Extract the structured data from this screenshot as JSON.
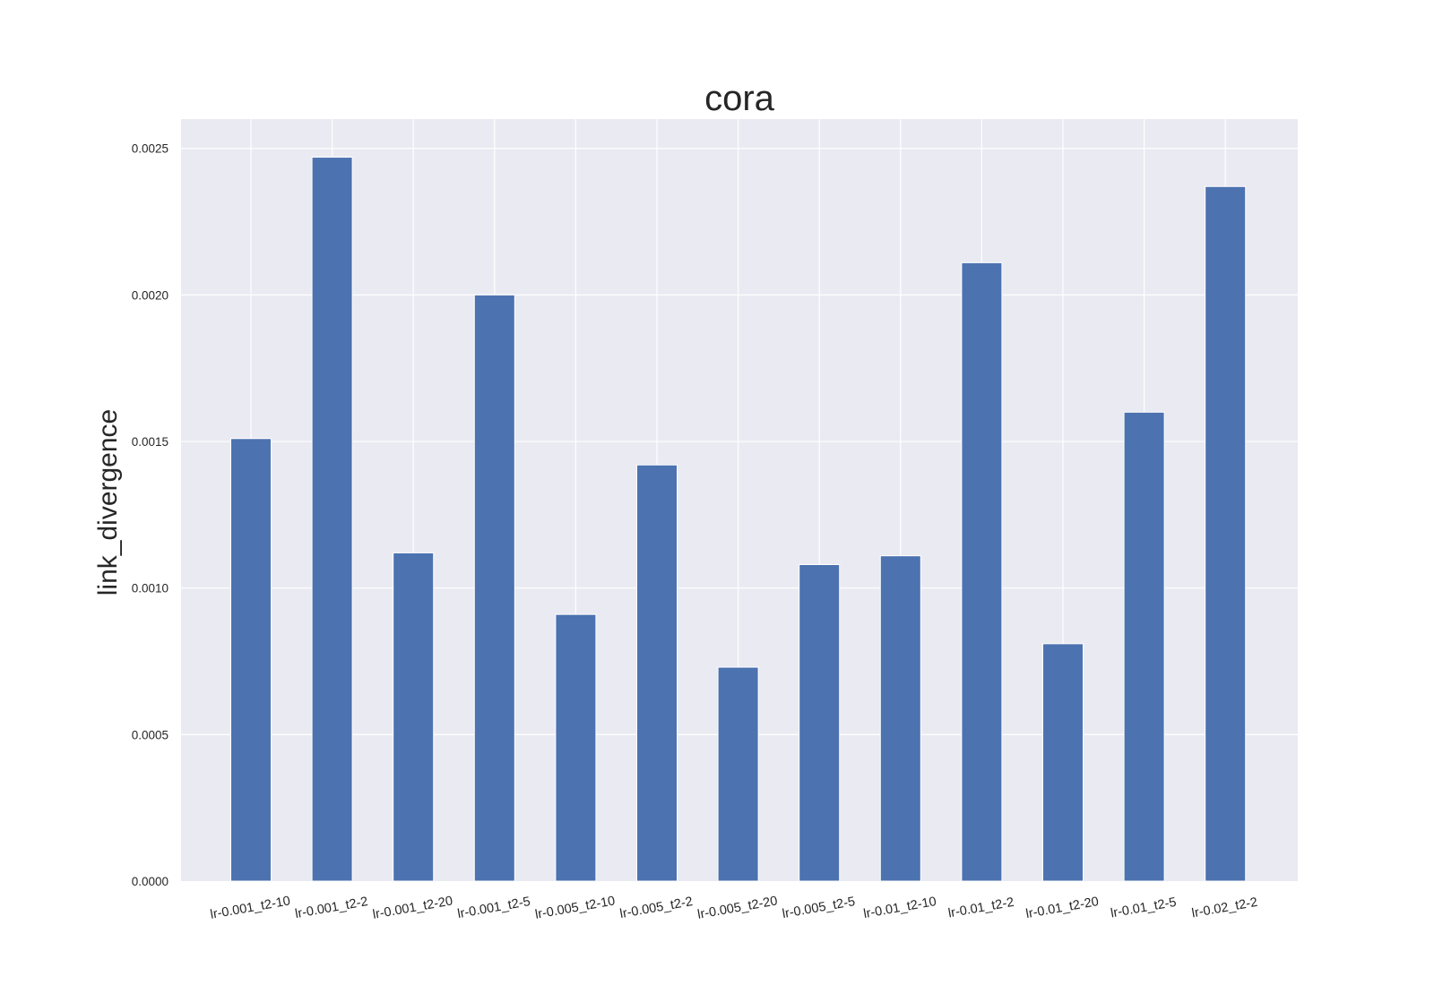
{
  "chart_data": {
    "type": "bar",
    "title": "cora",
    "xlabel": "",
    "ylabel": "link_divergence",
    "categories": [
      "lr-0.001_t2-10",
      "lr-0.001_t2-2",
      "lr-0.001_t2-20",
      "lr-0.001_t2-5",
      "lr-0.005_t2-10",
      "lr-0.005_t2-2",
      "lr-0.005_t2-20",
      "lr-0.005_t2-5",
      "lr-0.01_t2-10",
      "lr-0.01_t2-2",
      "lr-0.01_t2-20",
      "lr-0.01_t2-5",
      "lr-0.02_t2-2"
    ],
    "values": [
      0.00151,
      0.00247,
      0.00112,
      0.002,
      0.00091,
      0.00142,
      0.00073,
      0.00108,
      0.00111,
      0.00211,
      0.00081,
      0.0016,
      0.00237
    ],
    "ylim": [
      0,
      0.0026
    ],
    "yticks": [
      "0.0000",
      "0.0005",
      "0.0010",
      "0.0015",
      "0.0020",
      "0.0025"
    ],
    "ytick_values": [
      0,
      0.0005,
      0.001,
      0.0015,
      0.002,
      0.0025
    ],
    "grid": true,
    "bar_color": "#4c72b0",
    "plot_background": "#eaeaf2"
  }
}
